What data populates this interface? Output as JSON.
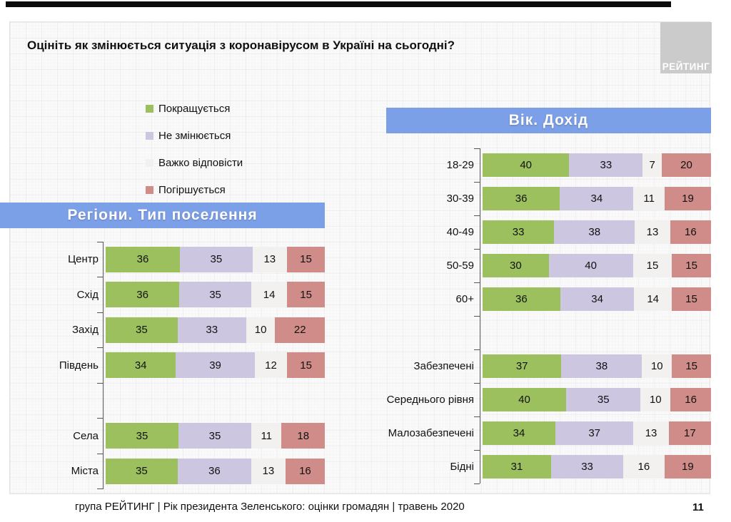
{
  "header": {
    "title": "Оцініть як змінюється ситуація з коронавірусом в Україні на сьогодні?"
  },
  "logo": {
    "text": "РЕЙТИНГ"
  },
  "legend": {
    "items": [
      {
        "label": "Покращується",
        "color": "#9DC05E"
      },
      {
        "label": "Не змінюється",
        "color": "#CCC6E1"
      },
      {
        "label": "Важко відповісти",
        "color": "#F2F1EF"
      },
      {
        "label": "Погіршується",
        "color": "#D08C88"
      }
    ]
  },
  "colors": {
    "banner_blue": "#7CA0E8",
    "logo_gray": "#CBCBCB",
    "axis_gray": "#555555"
  },
  "chart_data": [
    {
      "type": "bar",
      "orientation": "horizontal-stacked",
      "title": "Регіони. Тип поселення",
      "series_names": [
        "Покращується",
        "Не змінюється",
        "Важко відповісти",
        "Погіршується"
      ],
      "unit": "percent",
      "rows": [
        {
          "label": "Центр",
          "values": [
            36,
            35,
            13,
            15
          ]
        },
        {
          "label": "Схід",
          "values": [
            36,
            35,
            14,
            15
          ]
        },
        {
          "label": "Захід",
          "values": [
            35,
            33,
            10,
            22
          ]
        },
        {
          "label": "Південь",
          "values": [
            34,
            39,
            12,
            15
          ]
        },
        {
          "label": "",
          "gap": true
        },
        {
          "label": "Села",
          "values": [
            35,
            35,
            11,
            18
          ]
        },
        {
          "label": "Міста",
          "values": [
            35,
            36,
            13,
            16
          ]
        }
      ]
    },
    {
      "type": "bar",
      "orientation": "horizontal-stacked",
      "title": "Вік. Дохід",
      "series_names": [
        "Покращується",
        "Не змінюється",
        "Важко відповісти",
        "Погіршується"
      ],
      "unit": "percent",
      "rows": [
        {
          "label": "18-29",
          "values": [
            40,
            33,
            7,
            20
          ]
        },
        {
          "label": "30-39",
          "values": [
            36,
            34,
            11,
            19
          ]
        },
        {
          "label": "40-49",
          "values": [
            33,
            38,
            13,
            16
          ]
        },
        {
          "label": "50-59",
          "values": [
            30,
            40,
            15,
            15
          ]
        },
        {
          "label": "60+",
          "values": [
            36,
            34,
            14,
            15
          ]
        },
        {
          "label": "",
          "gap": true
        },
        {
          "label": "Забезпечені",
          "values": [
            37,
            38,
            10,
            15
          ]
        },
        {
          "label": "Середнього рівня",
          "values": [
            40,
            35,
            10,
            16
          ]
        },
        {
          "label": "Малозабезпечені",
          "values": [
            34,
            37,
            13,
            17
          ]
        },
        {
          "label": "Бідні",
          "values": [
            31,
            33,
            16,
            19
          ]
        }
      ]
    }
  ],
  "footer": {
    "text": "група РЕЙТИНГ |  Рік президента Зеленського: оцінки громадян | травень 2020"
  },
  "page": {
    "number": "11"
  }
}
